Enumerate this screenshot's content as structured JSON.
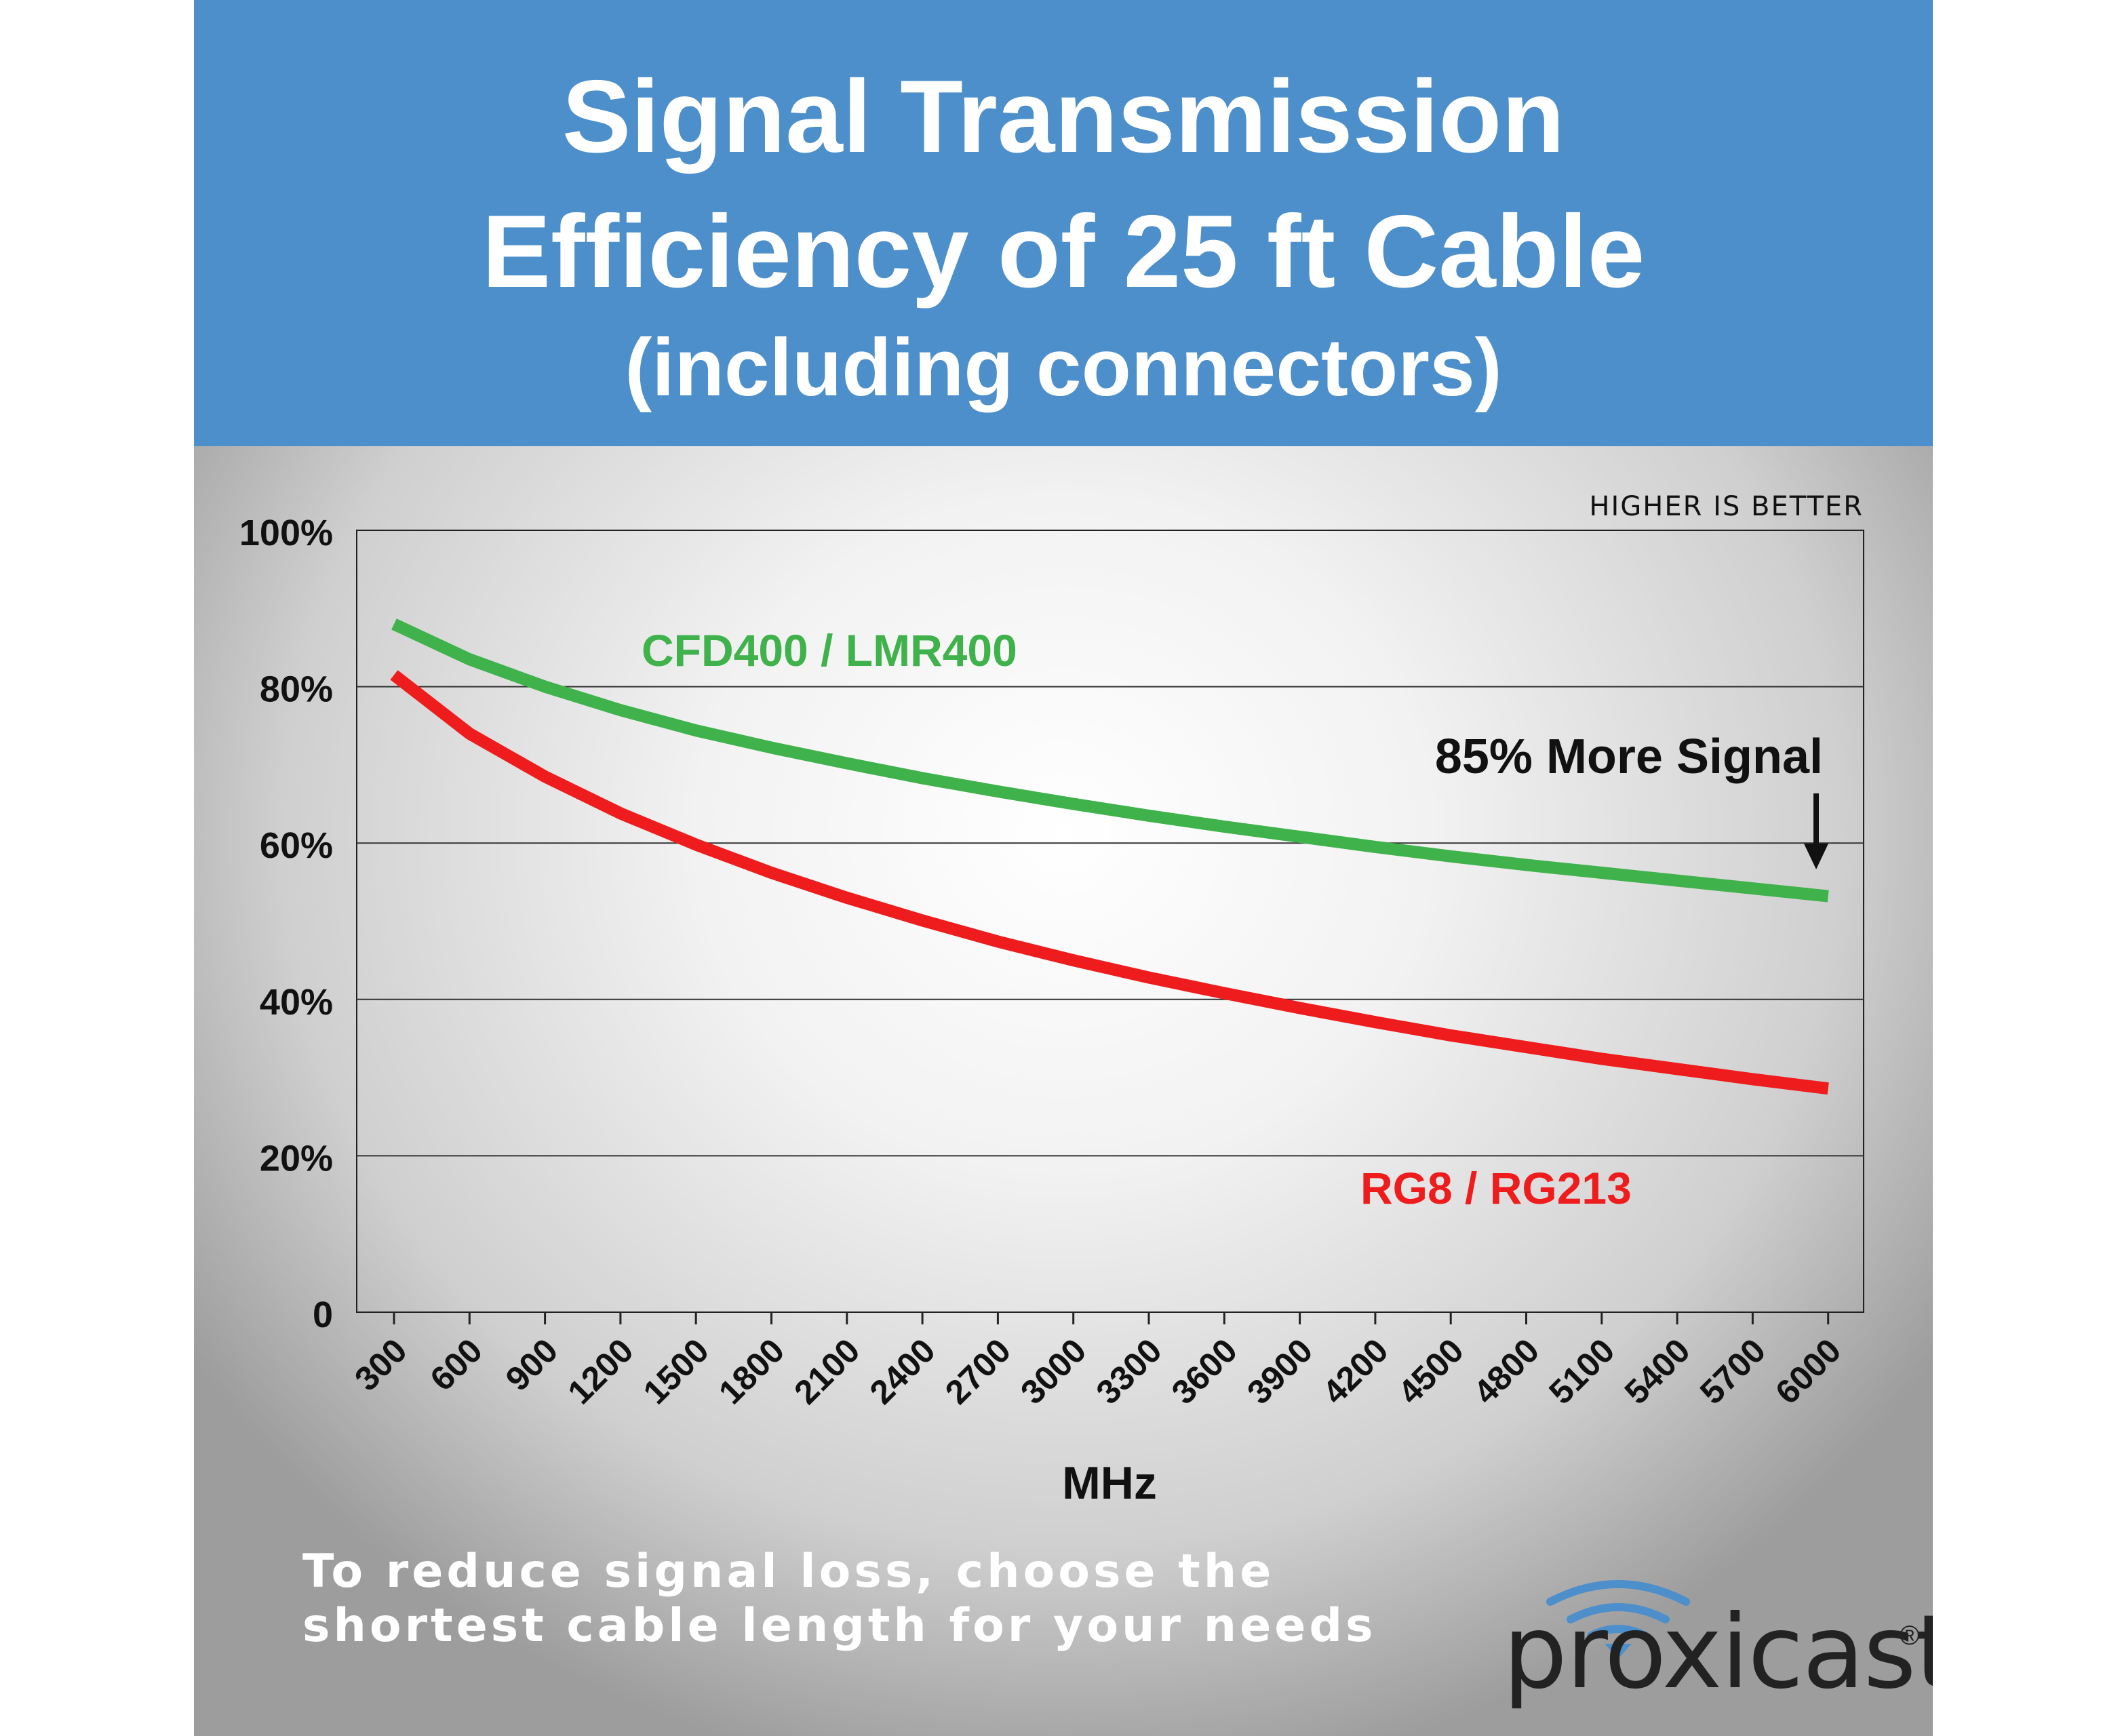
{
  "header": {
    "title_line1": "Signal Transmission",
    "title_line2": "Efficiency of 25 ft Cable",
    "subtitle": "(including connectors)",
    "background": "#4d8fcb"
  },
  "chart_data": {
    "type": "line",
    "x": [
      300,
      600,
      900,
      1200,
      1500,
      1800,
      2100,
      2400,
      2700,
      3000,
      3300,
      3600,
      3900,
      4200,
      4500,
      4800,
      5100,
      5400,
      5700,
      6000
    ],
    "x_tick_labels": [
      "300",
      "600",
      "900",
      "1200",
      "1500",
      "1800",
      "2100",
      "2400",
      "2700",
      "3000",
      "3300",
      "3600",
      "3900",
      "4200",
      "4500",
      "4800",
      "5100",
      "5400",
      "5700",
      "6000"
    ],
    "y_tick_labels": [
      "0",
      "20%",
      "40%",
      "60%",
      "80%",
      "100%"
    ],
    "y_ticks": [
      0,
      20,
      40,
      60,
      80,
      100
    ],
    "ylim": [
      0,
      100
    ],
    "xlabel": "MHz",
    "ylabel": "",
    "grid": true,
    "series": [
      {
        "name": "CFD400 / LMR400",
        "color": "#3fb24b",
        "values": [
          88,
          83.5,
          80,
          77,
          74.4,
          72.2,
          70.2,
          68.3,
          66.6,
          65,
          63.5,
          62.1,
          60.8,
          59.5,
          58.3,
          57.2,
          56.2,
          55.2,
          54.2,
          53.2
        ]
      },
      {
        "name": "RG8 / RG213",
        "color": "#ee1c1c",
        "values": [
          81.5,
          74,
          68.5,
          63.8,
          59.8,
          56.2,
          53,
          50.1,
          47.4,
          45,
          42.8,
          40.8,
          38.9,
          37.1,
          35.4,
          33.9,
          32.4,
          31.1,
          29.8,
          28.6
        ]
      }
    ],
    "annotations": {
      "higher_is_better": "HIGHER IS BETTER",
      "more_signal": "85% More Signal"
    }
  },
  "footer": {
    "note_line1": "To reduce signal loss, choose the",
    "note_line2": "shortest cable length for your needs"
  },
  "brand": {
    "name": "proxicast",
    "reg_mark": "®",
    "accent_color": "#4d8fcb"
  }
}
